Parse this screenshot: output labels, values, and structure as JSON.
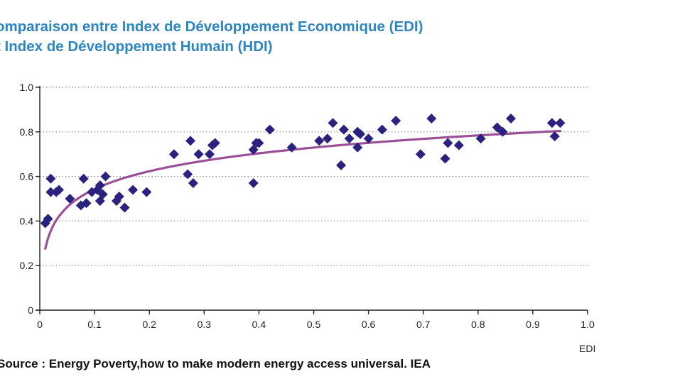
{
  "header": {
    "title_line1": "omparaison entre Index de Développement Economique (EDI)",
    "title_line2": "t Index de Développement Humain (HDI)"
  },
  "footer": {
    "source": "Source : Energy Poverty,how to make modern energy access universal. IEA"
  },
  "colors": {
    "title": "#2e86c1",
    "points": "#2b2280",
    "trend": "#9b4f96",
    "grid": "#8c8c8c"
  },
  "chart_data": {
    "type": "scatter",
    "title": "Comparaison entre Index de Développement Economique (EDI) et Index de Développement Humain (HDI)",
    "xlabel": "EDI",
    "ylabel": "",
    "xlim": [
      0,
      1.0
    ],
    "ylim": [
      0,
      1.0
    ],
    "x_ticks": [
      "0",
      "0.1",
      "0.2",
      "0.3",
      "0.4",
      "0.5",
      "0.6",
      "0.7",
      "0.8",
      "0.9",
      "1.0"
    ],
    "y_ticks": [
      "0",
      "0.2",
      "0.4",
      "0.6",
      "0.8",
      "1.0"
    ],
    "grid": "horizontal dotted",
    "trendline": "logarithmic",
    "points": [
      [
        0.01,
        0.39
      ],
      [
        0.015,
        0.41
      ],
      [
        0.02,
        0.59
      ],
      [
        0.02,
        0.53
      ],
      [
        0.03,
        0.53
      ],
      [
        0.035,
        0.54
      ],
      [
        0.055,
        0.5
      ],
      [
        0.075,
        0.47
      ],
      [
        0.08,
        0.59
      ],
      [
        0.085,
        0.48
      ],
      [
        0.095,
        0.53
      ],
      [
        0.105,
        0.54
      ],
      [
        0.11,
        0.49
      ],
      [
        0.11,
        0.56
      ],
      [
        0.115,
        0.52
      ],
      [
        0.12,
        0.6
      ],
      [
        0.14,
        0.49
      ],
      [
        0.145,
        0.51
      ],
      [
        0.155,
        0.46
      ],
      [
        0.17,
        0.54
      ],
      [
        0.195,
        0.53
      ],
      [
        0.245,
        0.7
      ],
      [
        0.27,
        0.61
      ],
      [
        0.275,
        0.76
      ],
      [
        0.28,
        0.57
      ],
      [
        0.29,
        0.7
      ],
      [
        0.31,
        0.7
      ],
      [
        0.315,
        0.74
      ],
      [
        0.32,
        0.75
      ],
      [
        0.39,
        0.57
      ],
      [
        0.39,
        0.72
      ],
      [
        0.395,
        0.75
      ],
      [
        0.4,
        0.75
      ],
      [
        0.42,
        0.81
      ],
      [
        0.46,
        0.73
      ],
      [
        0.51,
        0.76
      ],
      [
        0.525,
        0.77
      ],
      [
        0.535,
        0.84
      ],
      [
        0.55,
        0.65
      ],
      [
        0.555,
        0.81
      ],
      [
        0.565,
        0.77
      ],
      [
        0.58,
        0.73
      ],
      [
        0.58,
        0.8
      ],
      [
        0.585,
        0.79
      ],
      [
        0.6,
        0.77
      ],
      [
        0.625,
        0.81
      ],
      [
        0.65,
        0.85
      ],
      [
        0.695,
        0.7
      ],
      [
        0.715,
        0.86
      ],
      [
        0.74,
        0.68
      ],
      [
        0.745,
        0.75
      ],
      [
        0.765,
        0.74
      ],
      [
        0.805,
        0.77
      ],
      [
        0.835,
        0.82
      ],
      [
        0.845,
        0.8
      ],
      [
        0.86,
        0.86
      ],
      [
        0.935,
        0.84
      ],
      [
        0.94,
        0.78
      ],
      [
        0.95,
        0.84
      ]
    ],
    "trend_fn": {
      "a": 0.81,
      "b": 0.116
    }
  }
}
